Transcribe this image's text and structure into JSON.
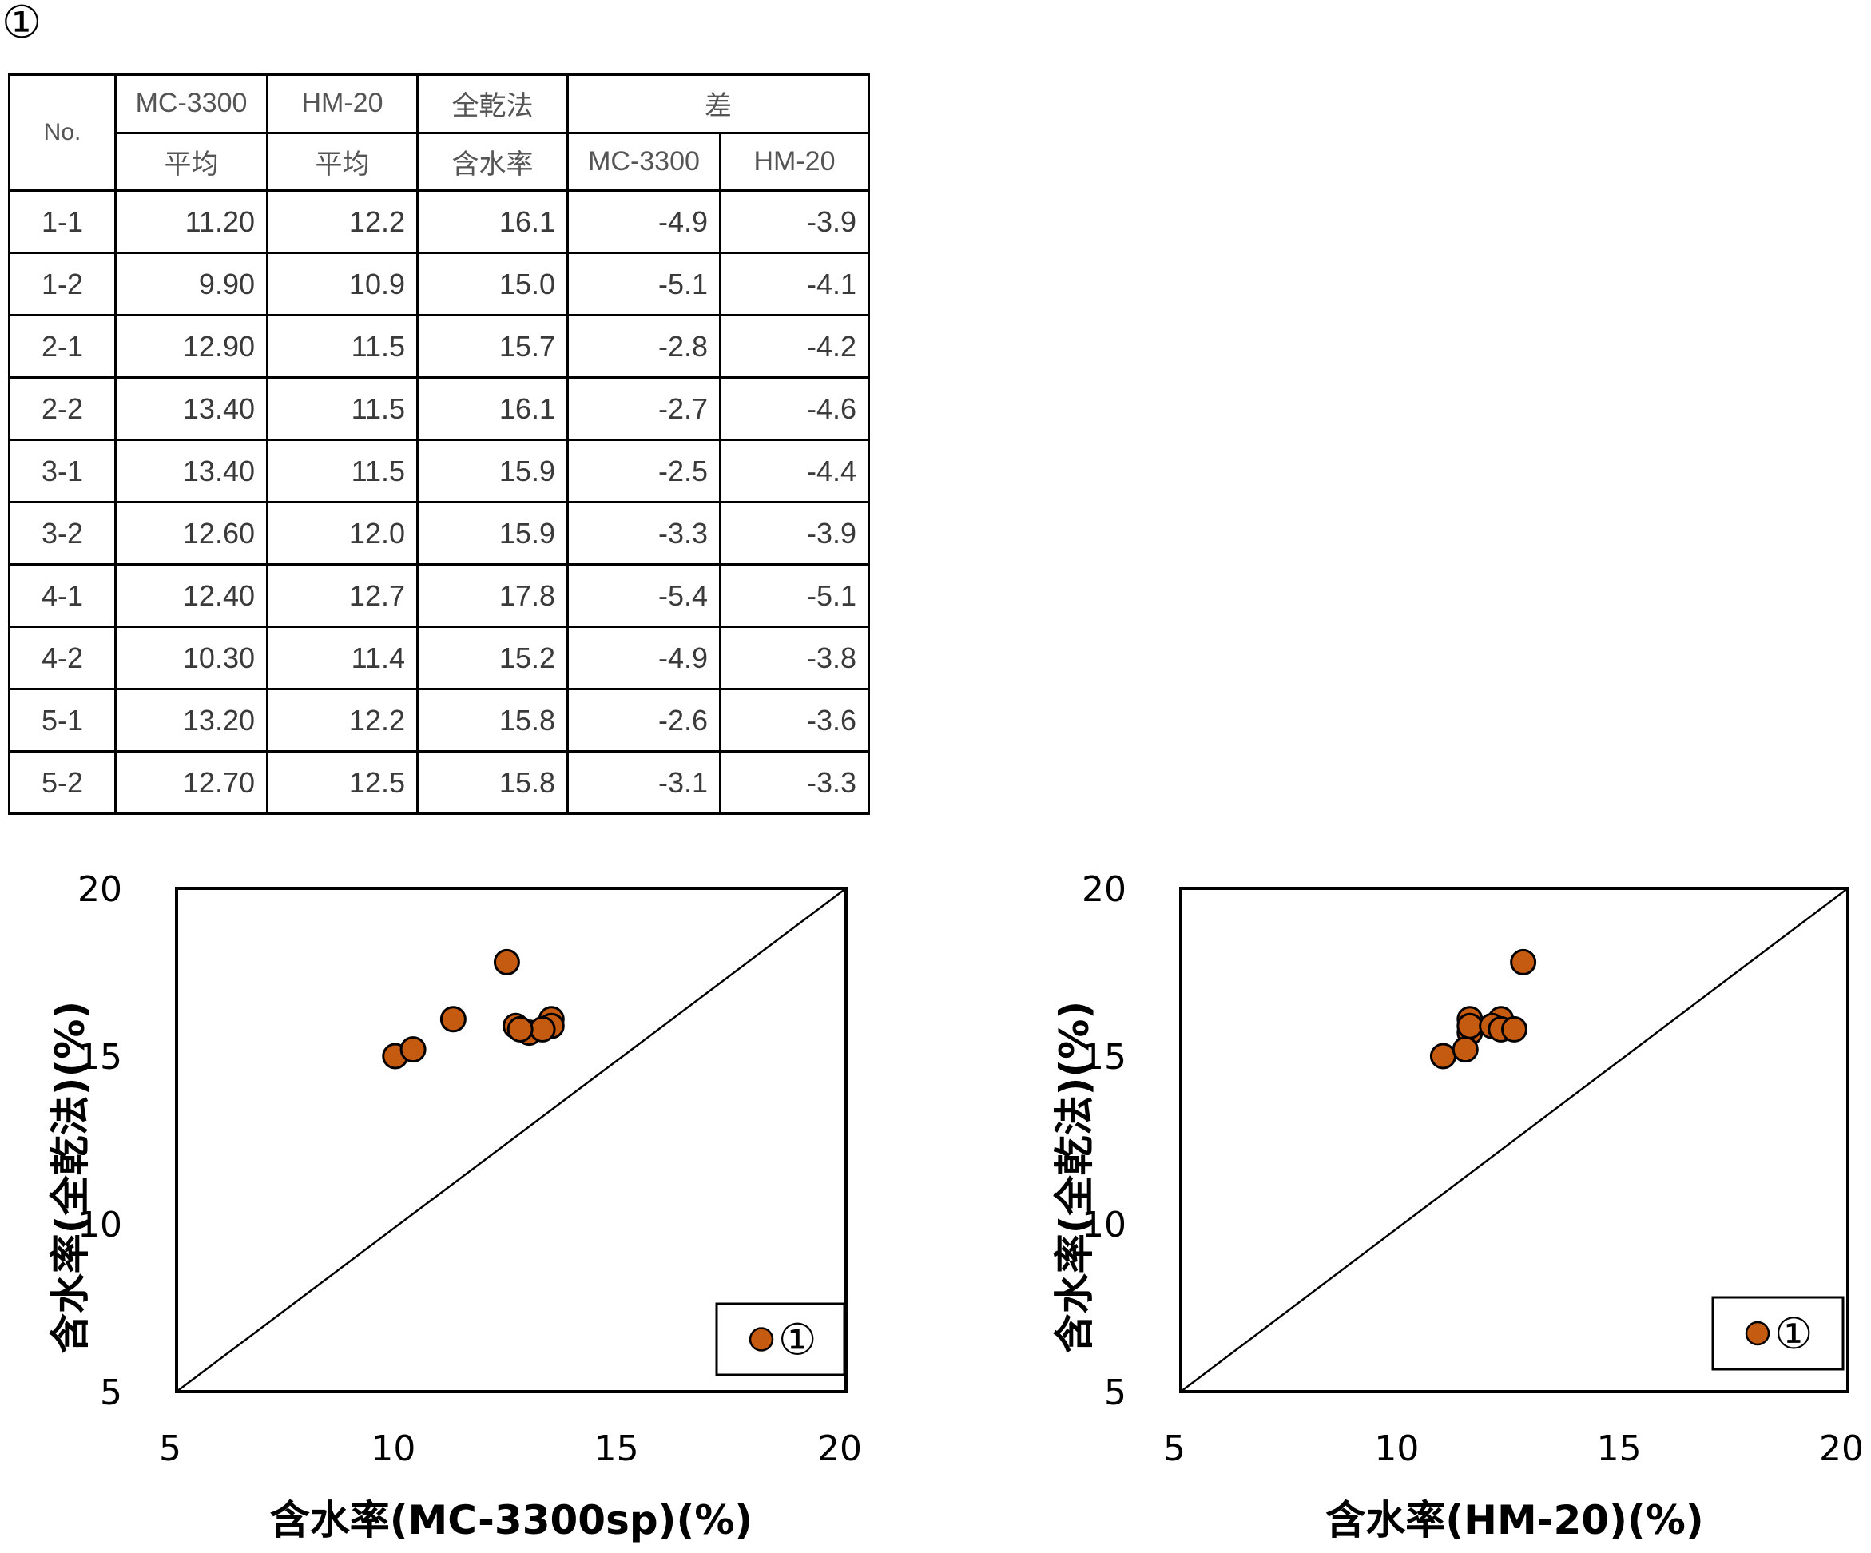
{
  "figure_label": "①",
  "table": {
    "header_row1": [
      "No.",
      "MC-3300",
      "HM-20",
      "全乾法",
      "差"
    ],
    "header_row2": [
      "平均",
      "平均",
      "含水率",
      "MC-3300",
      "HM-20"
    ],
    "rows": [
      {
        "no": "1-1",
        "mc3300": "11.20",
        "hm20": "12.2",
        "zenkan": "16.1",
        "diff_mc": "-4.9",
        "diff_hm": "-3.9"
      },
      {
        "no": "1-2",
        "mc3300": "9.90",
        "hm20": "10.9",
        "zenkan": "15.0",
        "diff_mc": "-5.1",
        "diff_hm": "-4.1"
      },
      {
        "no": "2-1",
        "mc3300": "12.90",
        "hm20": "11.5",
        "zenkan": "15.7",
        "diff_mc": "-2.8",
        "diff_hm": "-4.2"
      },
      {
        "no": "2-2",
        "mc3300": "13.40",
        "hm20": "11.5",
        "zenkan": "16.1",
        "diff_mc": "-2.7",
        "diff_hm": "-4.6"
      },
      {
        "no": "3-1",
        "mc3300": "13.40",
        "hm20": "11.5",
        "zenkan": "15.9",
        "diff_mc": "-2.5",
        "diff_hm": "-4.4"
      },
      {
        "no": "3-2",
        "mc3300": "12.60",
        "hm20": "12.0",
        "zenkan": "15.9",
        "diff_mc": "-3.3",
        "diff_hm": "-3.9"
      },
      {
        "no": "4-1",
        "mc3300": "12.40",
        "hm20": "12.7",
        "zenkan": "17.8",
        "diff_mc": "-5.4",
        "diff_hm": "-5.1"
      },
      {
        "no": "4-2",
        "mc3300": "10.30",
        "hm20": "11.4",
        "zenkan": "15.2",
        "diff_mc": "-4.9",
        "diff_hm": "-3.8"
      },
      {
        "no": "5-1",
        "mc3300": "13.20",
        "hm20": "12.2",
        "zenkan": "15.8",
        "diff_mc": "-2.6",
        "diff_hm": "-3.6"
      },
      {
        "no": "5-2",
        "mc3300": "12.70",
        "hm20": "12.5",
        "zenkan": "15.8",
        "diff_mc": "-3.1",
        "diff_hm": "-3.3"
      }
    ]
  },
  "colors": {
    "marker_fill": "#C55A11",
    "marker_stroke": "#000000",
    "line": "#000000"
  },
  "chart_data": [
    {
      "type": "scatter",
      "title": "",
      "xlabel": "含水率(MC-3300sp)(%)",
      "ylabel": "含水率(全乾法)(%)",
      "xlim": [
        5,
        20
      ],
      "ylim": [
        5,
        20
      ],
      "xticks": [
        "5",
        "10",
        "15",
        "20"
      ],
      "yticks": [
        "5",
        "10",
        "15",
        "20"
      ],
      "grid": false,
      "reference_line": "y = x",
      "legend": {
        "position": "bottom-right",
        "entries": [
          "①"
        ]
      },
      "series": [
        {
          "name": "①",
          "x": [
            11.2,
            9.9,
            12.9,
            13.4,
            13.4,
            12.6,
            12.4,
            10.3,
            13.2,
            12.7
          ],
          "y": [
            16.1,
            15.0,
            15.7,
            16.1,
            15.9,
            15.9,
            17.8,
            15.2,
            15.8,
            15.8
          ]
        }
      ]
    },
    {
      "type": "scatter",
      "title": "",
      "xlabel": "含水率(HM-20)(%)",
      "ylabel": "含水率(全乾法)(%)",
      "xlim": [
        5,
        20
      ],
      "ylim": [
        5,
        20
      ],
      "xticks": [
        "5",
        "10",
        "15",
        "20"
      ],
      "yticks": [
        "5",
        "10",
        "15",
        "20"
      ],
      "grid": false,
      "reference_line": "y = x",
      "legend": {
        "position": "bottom-right",
        "entries": [
          "①"
        ]
      },
      "series": [
        {
          "name": "①",
          "x": [
            12.2,
            10.9,
            11.5,
            11.5,
            11.5,
            12.0,
            12.7,
            11.4,
            12.2,
            12.5
          ],
          "y": [
            16.1,
            15.0,
            15.7,
            16.1,
            15.9,
            15.9,
            17.8,
            15.2,
            15.8,
            15.8
          ]
        }
      ]
    }
  ]
}
